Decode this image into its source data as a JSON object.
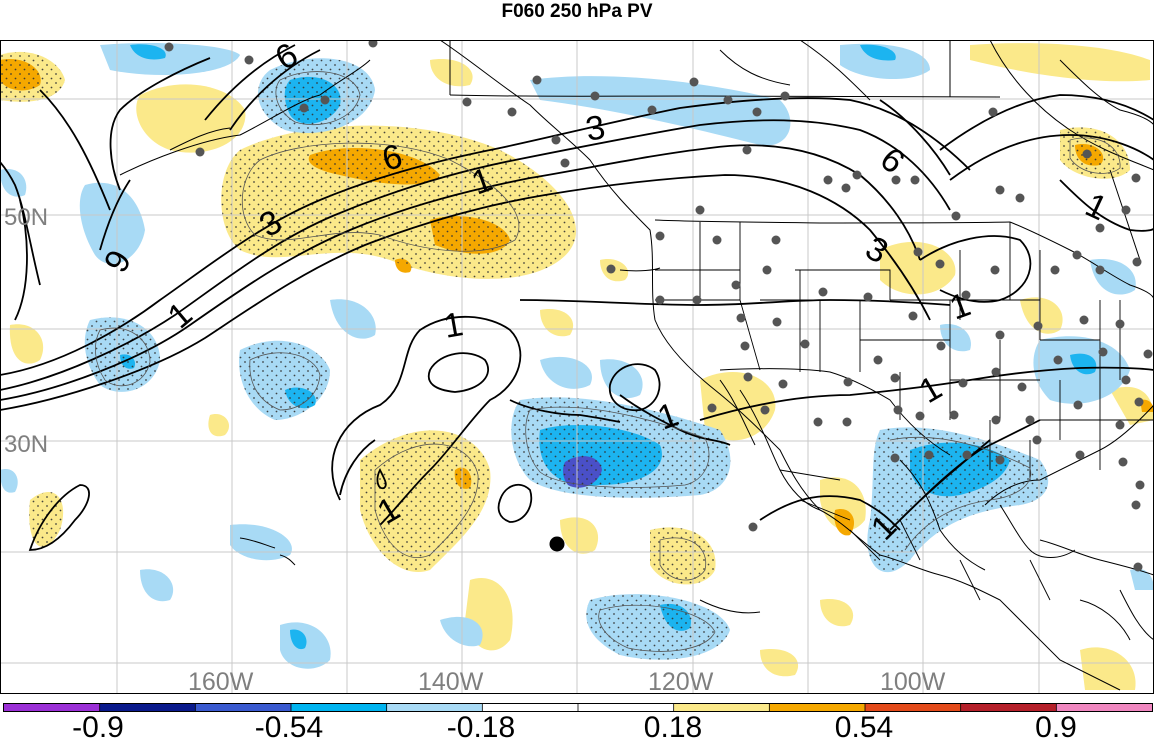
{
  "title": "F060 250 hPa PV",
  "lat_labels": [
    "50N",
    "30N"
  ],
  "lon_labels": [
    "160W",
    "140W",
    "120W",
    "100W"
  ],
  "contour_labels": [
    "6",
    "6",
    "6",
    "6",
    "3",
    "3",
    "3",
    "1",
    "1",
    "1",
    "1",
    "1",
    "1",
    "1",
    "1",
    "1"
  ],
  "colorbar": {
    "tick_labels": [
      "-0.9",
      "-0.54",
      "-0.18",
      "0.18",
      "0.54",
      "0.9"
    ],
    "colors": [
      "#9b30d6",
      "#0a1a8c",
      "#3a5ad0",
      "#00b4f0",
      "#a8daf5",
      "#ffffff",
      "#ffffff",
      "#fbe98a",
      "#f5a800",
      "#e34a1a",
      "#b5202a",
      "#f087c0"
    ]
  },
  "colors": {
    "light_blue": "#a8daf5",
    "mid_blue": "#1cb4f0",
    "dark_blue": "#4a50c8",
    "light_yellow": "#fbe98a",
    "orange": "#f5a800",
    "station": "#555555",
    "gridline": "#c8c8c8",
    "label_gray": "#7f7f7f"
  },
  "marker": "storm-center-dot"
}
